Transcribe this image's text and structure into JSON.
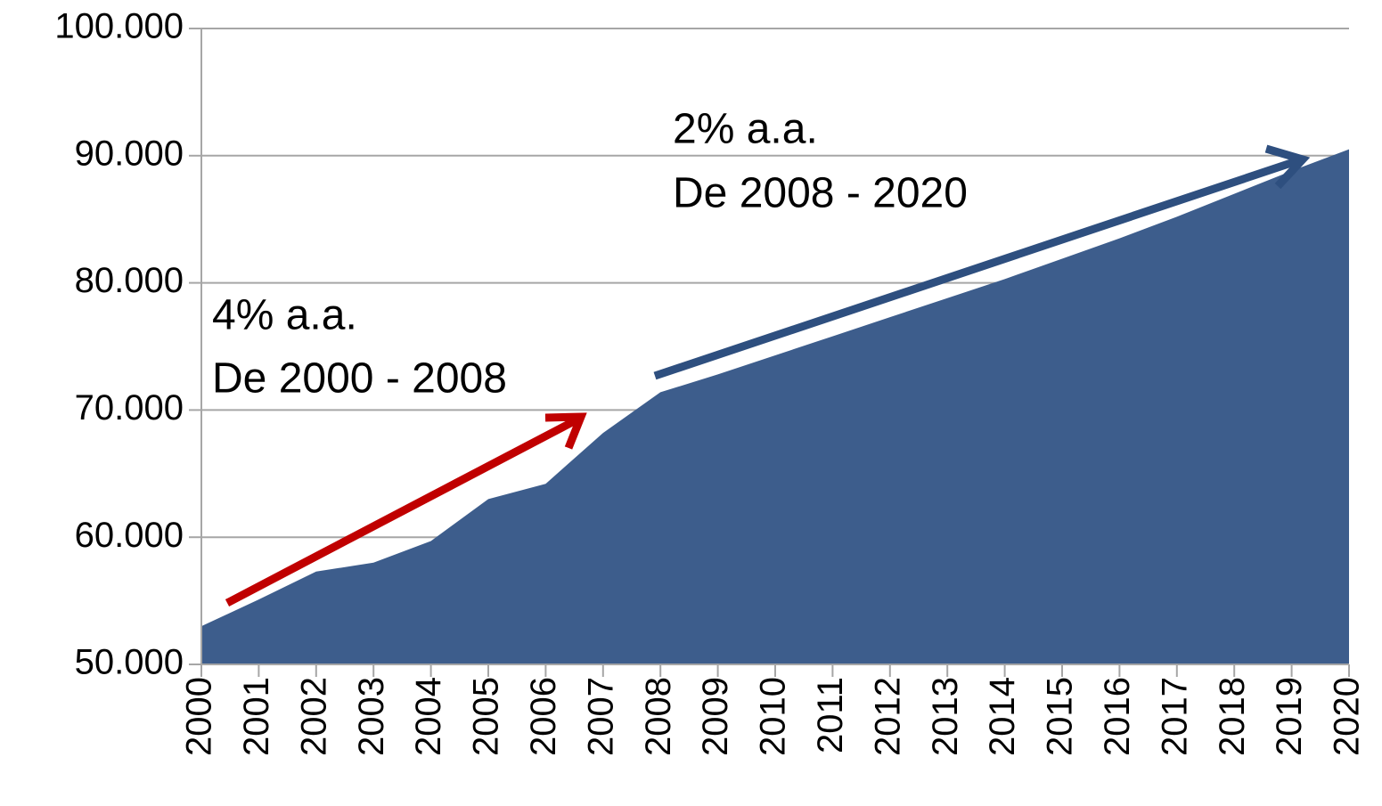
{
  "chart_data": {
    "type": "area",
    "categories": [
      "2000",
      "2001",
      "2002",
      "2003",
      "2004",
      "2005",
      "2006",
      "2007",
      "2008",
      "2009",
      "2010",
      "2011",
      "2012",
      "2013",
      "2014",
      "2015",
      "2016",
      "2017",
      "2018",
      "2019",
      "2020"
    ],
    "values": [
      53000,
      55100,
      57300,
      58000,
      59700,
      63000,
      64200,
      68200,
      71400,
      72800,
      74300,
      75800,
      77300,
      78800,
      80300,
      81900,
      83500,
      85200,
      87000,
      88800,
      90500
    ],
    "color": "#3d5d8c",
    "ylim": [
      50000,
      100000
    ],
    "yticks": [
      {
        "value": 50000,
        "label": "50.000"
      },
      {
        "value": 60000,
        "label": "60.000"
      },
      {
        "value": 70000,
        "label": "70.000"
      },
      {
        "value": 80000,
        "label": "80.000"
      },
      {
        "value": 90000,
        "label": "90.000"
      },
      {
        "value": 100000,
        "label": "100.000"
      }
    ],
    "grid": true,
    "annotations": [
      {
        "text": "4% a.a.",
        "color": "#c00000"
      },
      {
        "text": "De 2000 - 2008",
        "color": "#c00000"
      },
      {
        "text": "2% a.a.",
        "color": "#2e4f7f"
      },
      {
        "text": "De 2008 - 2020",
        "color": "#2e4f7f"
      }
    ]
  }
}
